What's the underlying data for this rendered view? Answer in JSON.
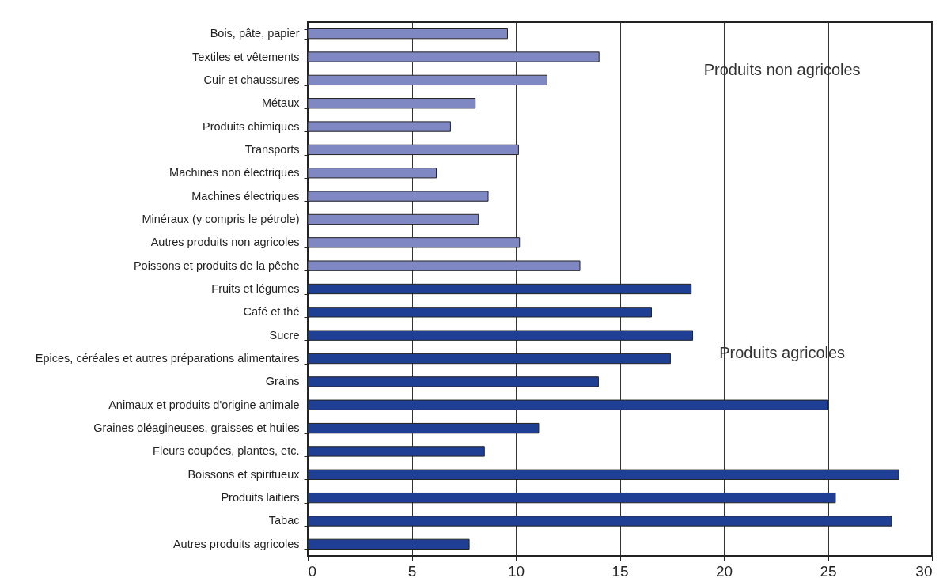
{
  "chart_data": {
    "type": "bar",
    "orientation": "horizontal",
    "categories": [
      "Bois, pâte, papier",
      "Textiles et vêtements",
      "Cuir et chaussures",
      "Métaux",
      "Produits chimiques",
      "Transports",
      "Machines non électriques",
      "Machines électriques",
      "Minéraux (y compris le pétrole)",
      "Autres produits non agricoles",
      "Poissons et produits de la pêche",
      "Fruits et légumes",
      "Café et thé",
      "Sucre",
      "Epices, céréales et autres préparations alimentaires",
      "Grains",
      "Animaux et produits d'origine animale",
      "Graines oléagineuses, graisses et huiles",
      "Fleurs coupées, plantes, etc.",
      "Boissons et spiritueux",
      "Produits laitiers",
      "Tabac",
      "Autres produits agricoles"
    ],
    "values": [
      9.6,
      14.0,
      11.5,
      8.05,
      6.86,
      10.13,
      6.18,
      8.67,
      8.2,
      10.18,
      13.08,
      18.43,
      16.52,
      18.5,
      17.43,
      13.97,
      25.0,
      11.1,
      8.49,
      28.4,
      25.36,
      28.07,
      7.76
    ],
    "colors": [
      "#8088c4",
      "#8088c4",
      "#8088c4",
      "#8088c4",
      "#8088c4",
      "#8088c4",
      "#8088c4",
      "#8088c4",
      "#8088c4",
      "#8088c4",
      "#8088c4",
      "#1f3f94",
      "#1f3f94",
      "#1f3f94",
      "#1f3f94",
      "#1f3f94",
      "#1f3f94",
      "#1f3f94",
      "#1f3f94",
      "#1f3f94",
      "#1f3f94",
      "#1f3f94",
      "#1f3f94"
    ],
    "xlim": [
      0,
      30
    ],
    "xticks": [
      0,
      5,
      10,
      15,
      20,
      25,
      30
    ],
    "grid": "x",
    "annotations": [
      "Produits non agricoles",
      "Produits agricoles"
    ]
  }
}
